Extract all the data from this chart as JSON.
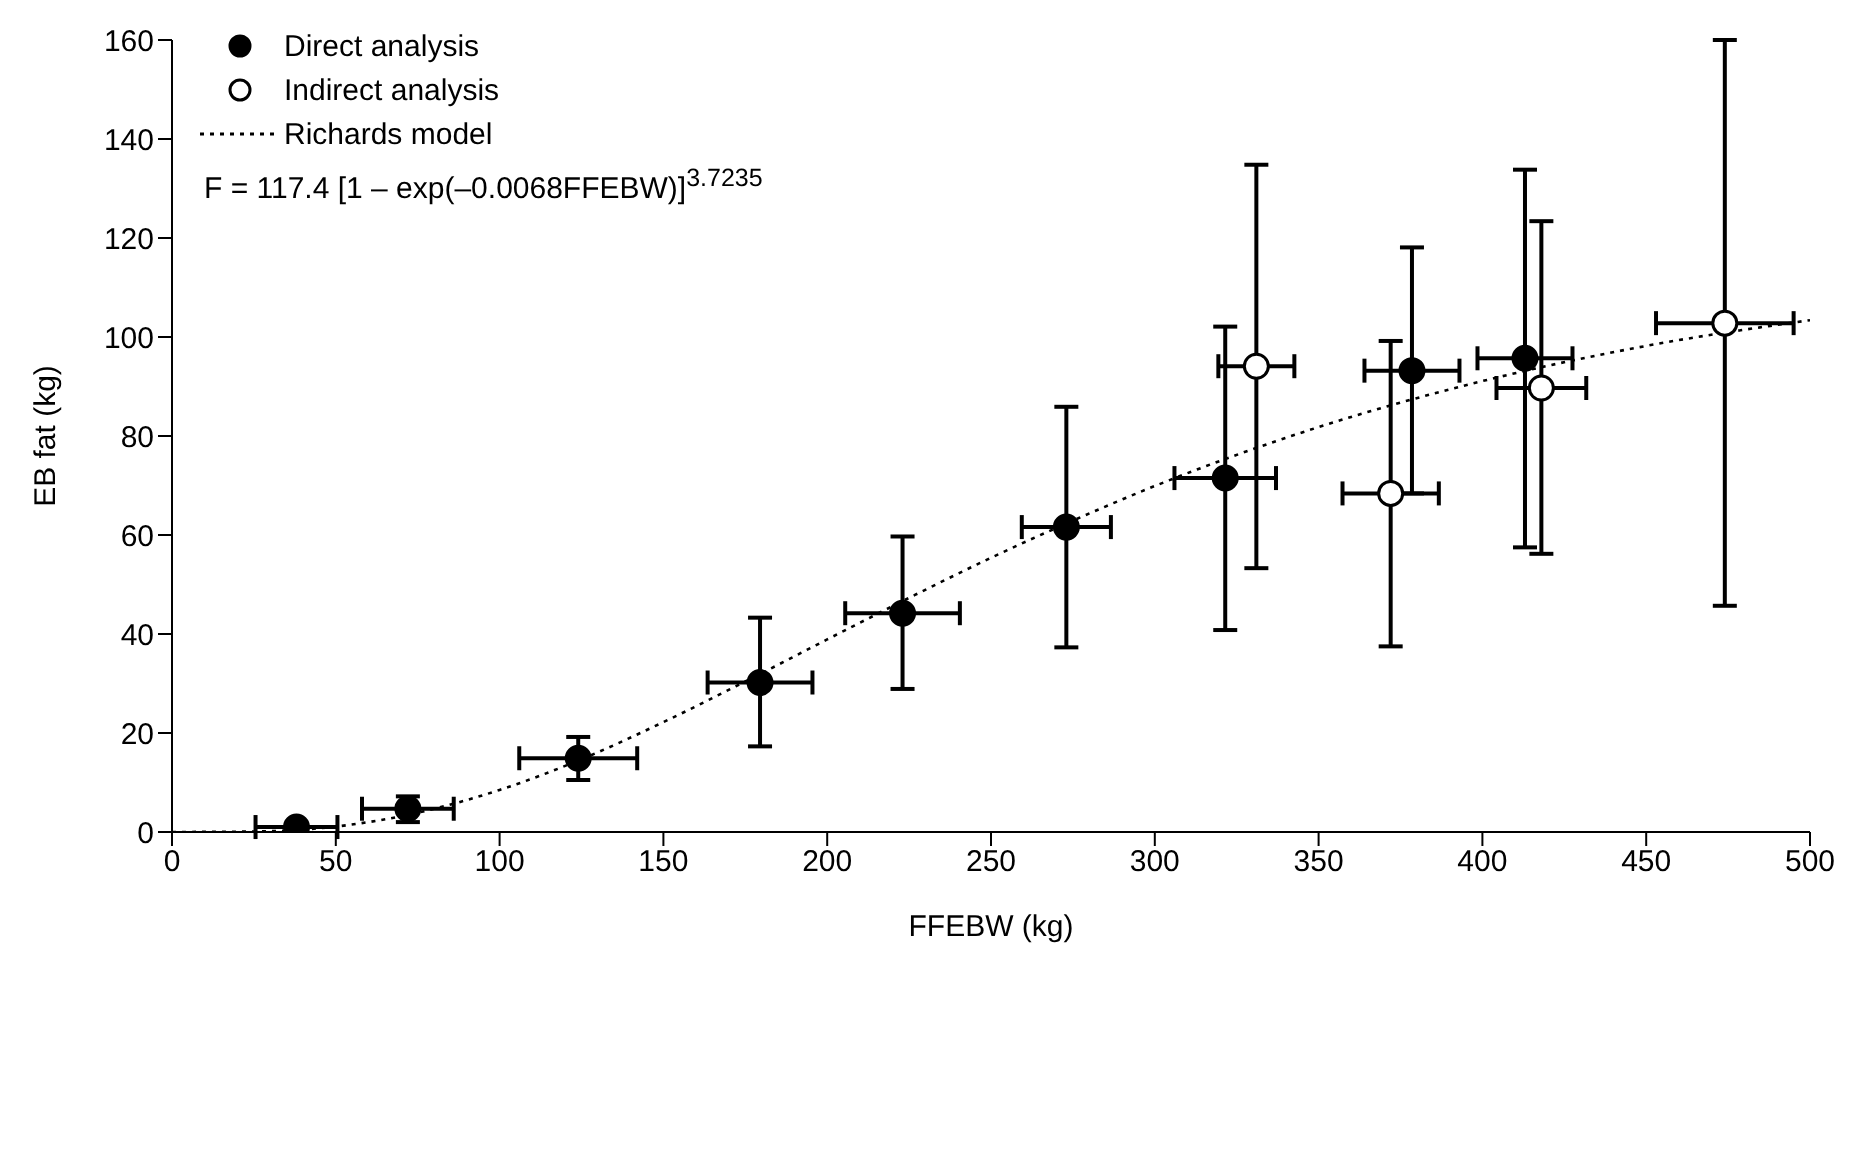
{
  "chart_data": {
    "type": "scatter",
    "xlabel": "FFEBW (kg)",
    "ylabel": "EB fat (kg)",
    "xlim": [
      0,
      500
    ],
    "xticks": [
      0,
      50,
      100,
      150,
      200,
      250,
      300,
      350,
      400,
      450,
      500
    ],
    "ylim": [
      0,
      160
    ],
    "yticks": [
      0,
      20,
      40,
      60,
      80,
      100,
      120,
      140,
      160
    ],
    "grid": false,
    "legend": "top left",
    "annotations": [
      "F = 117.4 [1 – exp(–0.0068FFEBW)]$^{3.7235}$"
    ],
    "series": [
      {
        "name": "Direct analysis",
        "marker": "circle",
        "color": "#000000",
        "x": [
          38,
          72,
          124,
          179.5,
          223,
          273,
          321.5,
          378.5,
          413
        ],
        "values": [
          1,
          4.7,
          14.9,
          30.2,
          44.2,
          61.6,
          71.5,
          93.2,
          95.7
        ],
        "xerrors": [
          12.5,
          14,
          18,
          16,
          17.5,
          13.6,
          15.5,
          14.5,
          14.5
        ],
        "errors": [
          null,
          [
            2,
            7.2
          ],
          [
            10.5,
            19.2
          ],
          [
            17.3,
            43.3
          ],
          [
            28.9,
            59.7
          ],
          [
            37.3,
            85.9
          ],
          [
            40.8,
            102.1
          ],
          [
            68.4,
            118.1
          ],
          [
            57.5,
            133.8
          ]
        ]
      },
      {
        "name": "Indirect analysis",
        "marker": "circle",
        "color": "#ffffff",
        "x": [
          331,
          372,
          418,
          474
        ],
        "values": [
          94.1,
          68.4,
          89.7,
          102.8
        ],
        "xerrors": [
          11.6,
          14.7,
          13.7,
          21
        ],
        "errors": [
          [
            53.3,
            134.8
          ],
          [
            37.5,
            99.2
          ],
          [
            56.2,
            123.4
          ],
          [
            45.7,
            160
          ]
        ]
      },
      {
        "name": "Richards model",
        "type": "line",
        "marker": "none",
        "color": "#000000",
        "line_style": "dotted",
        "x": [
          0,
          25,
          50,
          75,
          100,
          125,
          150,
          175,
          200,
          225,
          250,
          275,
          300,
          350,
          400,
          450,
          500
        ],
        "values": [
          0,
          0.1,
          1.1,
          3.9,
          8.5,
          14.7,
          22.2,
          30.4,
          38.9,
          47.3,
          55.4,
          62.9,
          69.9,
          81.8,
          91.1,
          98.2,
          103.4
        ]
      }
    ]
  }
}
